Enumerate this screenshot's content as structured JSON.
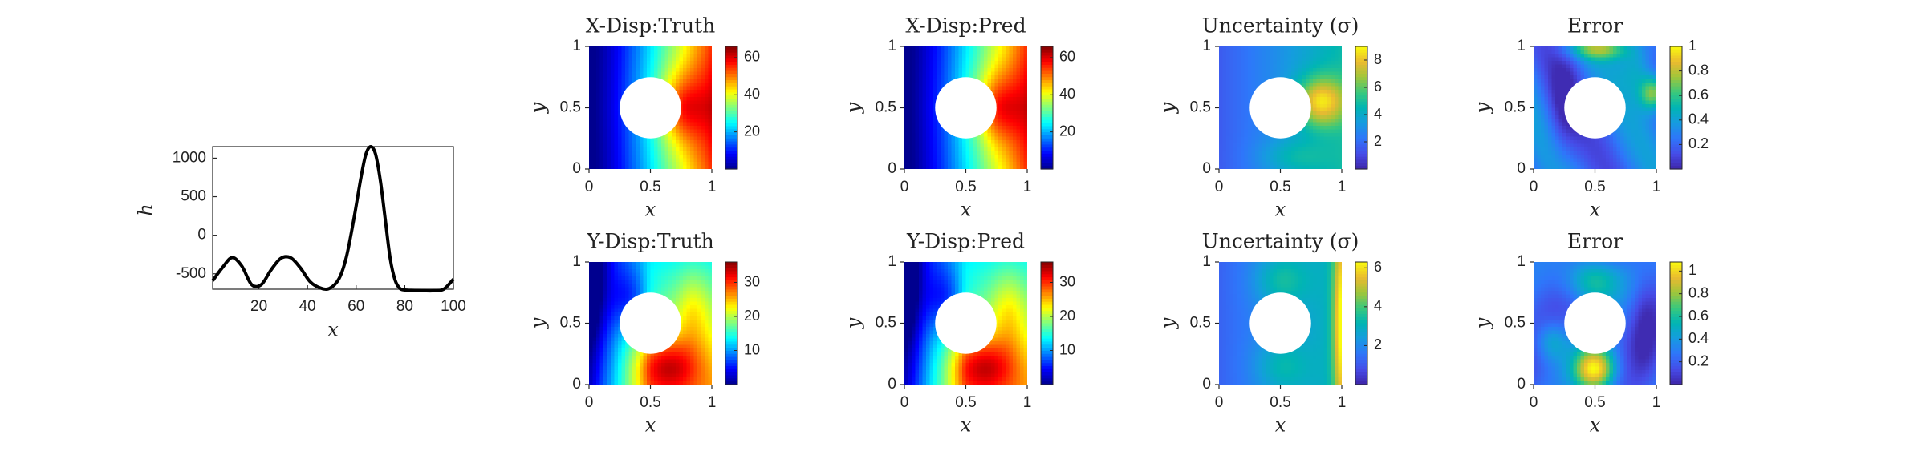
{
  "chart_data": [
    {
      "type": "line",
      "xlabel": "x",
      "ylabel": "h",
      "xlim": [
        1,
        100
      ],
      "ylim": [
        -700,
        1150
      ],
      "xticks": [
        20,
        40,
        60,
        80,
        100
      ],
      "yticks": [
        -500,
        0,
        500,
        1000
      ],
      "grid": false,
      "series": [
        {
          "color": "#000000",
          "x": [
            1,
            5,
            9,
            13,
            17,
            21,
            25,
            29,
            33,
            37,
            41,
            45,
            49,
            53,
            56,
            59,
            62,
            64,
            66,
            68,
            70,
            72,
            74,
            76,
            78,
            80,
            84,
            88,
            92,
            96,
            100
          ],
          "y": [
            -590,
            -420,
            -290,
            -400,
            -640,
            -640,
            -450,
            -300,
            -290,
            -420,
            -600,
            -680,
            -690,
            -560,
            -280,
            200,
            750,
            1050,
            1150,
            1050,
            700,
            200,
            -300,
            -580,
            -690,
            -710,
            -715,
            -720,
            -720,
            -700,
            -570
          ]
        }
      ]
    },
    {
      "type": "heatmap",
      "title": "X-Disp:Truth",
      "colormap": "jet",
      "xlabel": "x",
      "ylabel": "y",
      "xlim": [
        0,
        1
      ],
      "ylim": [
        0,
        1
      ],
      "xticks": [
        0,
        0.5,
        1
      ],
      "yticks": [
        0,
        0.5,
        1
      ],
      "hole": {
        "cx": 0.5,
        "cy": 0.5,
        "r": 0.25
      },
      "field": "xdisp",
      "zlim": [
        0,
        66
      ],
      "colorbar_ticks": [
        20,
        40,
        60
      ]
    },
    {
      "type": "heatmap",
      "title": "X-Disp:Pred",
      "colormap": "jet",
      "xlabel": "x",
      "ylabel": "y",
      "xlim": [
        0,
        1
      ],
      "ylim": [
        0,
        1
      ],
      "xticks": [
        0,
        0.5,
        1
      ],
      "yticks": [
        0,
        0.5,
        1
      ],
      "hole": {
        "cx": 0.5,
        "cy": 0.5,
        "r": 0.25
      },
      "field": "xdisp",
      "zlim": [
        0,
        66
      ],
      "colorbar_ticks": [
        20,
        40,
        60
      ]
    },
    {
      "type": "heatmap",
      "title": "Uncertainty (σ)",
      "colormap": "parula",
      "xlabel": "x",
      "ylabel": "y",
      "xlim": [
        0,
        1
      ],
      "ylim": [
        0,
        1
      ],
      "xticks": [
        0,
        0.5,
        1
      ],
      "yticks": [
        0,
        0.5,
        1
      ],
      "hole": {
        "cx": 0.5,
        "cy": 0.5,
        "r": 0.25
      },
      "field": "xunc",
      "zlim": [
        0,
        9
      ],
      "colorbar_ticks": [
        2,
        4,
        6,
        8
      ]
    },
    {
      "type": "heatmap",
      "title": "Error",
      "colormap": "parula",
      "xlabel": "x",
      "ylabel": "y",
      "xlim": [
        0,
        1
      ],
      "ylim": [
        0,
        1
      ],
      "xticks": [
        0,
        0.5,
        1
      ],
      "yticks": [
        0,
        0.5,
        1
      ],
      "hole": {
        "cx": 0.5,
        "cy": 0.5,
        "r": 0.25
      },
      "field": "xerr",
      "zlim": [
        0,
        1
      ],
      "colorbar_ticks": [
        0.2,
        0.4,
        0.6,
        0.8,
        1
      ]
    },
    {
      "type": "heatmap",
      "title": "Y-Disp:Truth",
      "colormap": "jet",
      "xlabel": "x",
      "ylabel": "y",
      "xlim": [
        0,
        1
      ],
      "ylim": [
        0,
        1
      ],
      "xticks": [
        0,
        0.5,
        1
      ],
      "yticks": [
        0,
        0.5,
        1
      ],
      "hole": {
        "cx": 0.5,
        "cy": 0.5,
        "r": 0.25
      },
      "field": "ydisp",
      "zlim": [
        0,
        36
      ],
      "colorbar_ticks": [
        10,
        20,
        30
      ]
    },
    {
      "type": "heatmap",
      "title": "Y-Disp:Pred",
      "colormap": "jet",
      "xlabel": "x",
      "ylabel": "y",
      "xlim": [
        0,
        1
      ],
      "ylim": [
        0,
        1
      ],
      "xticks": [
        0,
        0.5,
        1
      ],
      "yticks": [
        0,
        0.5,
        1
      ],
      "hole": {
        "cx": 0.5,
        "cy": 0.5,
        "r": 0.25
      },
      "field": "ydisp",
      "zlim": [
        0,
        36
      ],
      "colorbar_ticks": [
        10,
        20,
        30
      ]
    },
    {
      "type": "heatmap",
      "title": "Uncertainty (σ)",
      "colormap": "parula",
      "xlabel": "x",
      "ylabel": "y",
      "xlim": [
        0,
        1
      ],
      "ylim": [
        0,
        1
      ],
      "xticks": [
        0,
        0.5,
        1
      ],
      "yticks": [
        0,
        0.5,
        1
      ],
      "hole": {
        "cx": 0.5,
        "cy": 0.5,
        "r": 0.25
      },
      "field": "yunc",
      "zlim": [
        0,
        6.3
      ],
      "colorbar_ticks": [
        2,
        4,
        6
      ]
    },
    {
      "type": "heatmap",
      "title": "Error",
      "colormap": "parula",
      "xlabel": "x",
      "ylabel": "y",
      "xlim": [
        0,
        1
      ],
      "ylim": [
        0,
        1
      ],
      "xticks": [
        0,
        0.5,
        1
      ],
      "yticks": [
        0,
        0.5,
        1
      ],
      "hole": {
        "cx": 0.5,
        "cy": 0.5,
        "r": 0.25
      },
      "field": "yerr",
      "zlim": [
        0,
        1.08
      ],
      "colorbar_ticks": [
        0.2,
        0.4,
        0.6,
        0.8,
        1
      ]
    }
  ]
}
